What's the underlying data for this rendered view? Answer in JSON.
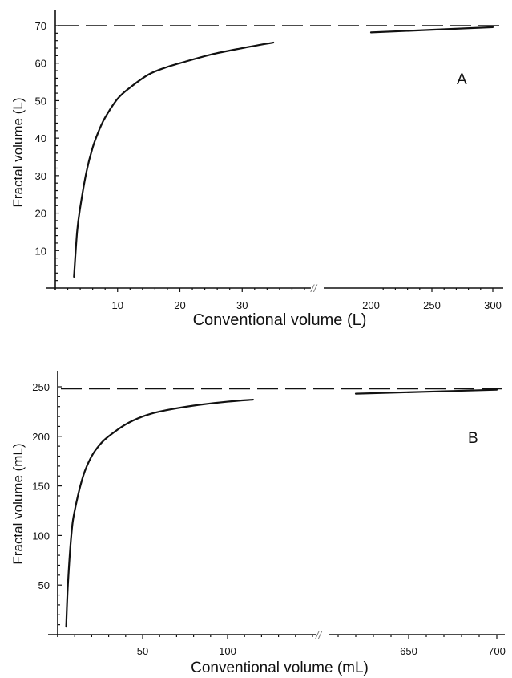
{
  "chart_data": [
    {
      "type": "line",
      "panel": "A",
      "xlabel": "Conventional volume (L)",
      "ylabel": "Fractal volume (L)",
      "axis_break": "//",
      "x_ticks_left": [
        10,
        20,
        30
      ],
      "x_ticks_right": [
        200,
        250,
        300
      ],
      "y_ticks": [
        10,
        20,
        30,
        40,
        50,
        60,
        70
      ],
      "xlim_left": [
        0,
        40
      ],
      "xlim_right": [
        200,
        300
      ],
      "ylim": [
        0,
        70
      ],
      "asymptote": 70,
      "series": [
        {
          "segment": "left",
          "x": [
            3,
            3.5,
            4,
            5,
            6,
            7,
            8,
            10,
            12,
            15,
            18,
            20,
            25,
            30,
            35
          ],
          "y": [
            3,
            15,
            21.5,
            31,
            37.5,
            42,
            45.5,
            50.5,
            53.5,
            57,
            59,
            60,
            62.3,
            64,
            65.5
          ]
        },
        {
          "segment": "right",
          "x": [
            200,
            300
          ],
          "y": [
            68.2,
            69.6
          ]
        }
      ]
    },
    {
      "type": "line",
      "panel": "B",
      "xlabel": "Conventional volume (mL)",
      "ylabel": "Fractal volume (mL)",
      "axis_break": "//",
      "x_ticks_left": [
        50,
        100
      ],
      "x_ticks_right": [
        650,
        700
      ],
      "y_ticks": [
        50,
        100,
        150,
        200,
        250
      ],
      "xlim_left": [
        0,
        150
      ],
      "xlim_right": [
        600,
        700
      ],
      "ylim": [
        0,
        250
      ],
      "asymptote": 248,
      "series": [
        {
          "segment": "left",
          "x": [
            5,
            6,
            8,
            10,
            15,
            20,
            25,
            30,
            40,
            50,
            60,
            80,
            100,
            115
          ],
          "y": [
            8,
            50,
            100,
            125,
            160,
            180,
            192,
            200,
            212,
            220,
            225,
            231,
            235,
            237
          ]
        },
        {
          "segment": "right",
          "x": [
            620,
            700
          ],
          "y": [
            243,
            247
          ]
        }
      ]
    }
  ]
}
